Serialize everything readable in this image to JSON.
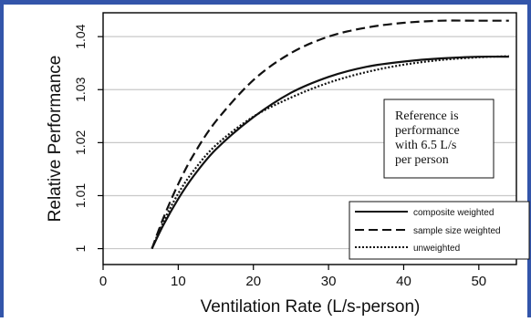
{
  "chart_data": {
    "type": "line",
    "xlabel": "Ventilation Rate (L/s-person)",
    "ylabel": "Relative Performance",
    "xlim": [
      0,
      55
    ],
    "ylim": [
      0.997,
      1.0445
    ],
    "x_ticks": [
      "0",
      "10",
      "20",
      "30",
      "40",
      "50"
    ],
    "y_ticks": [
      "1",
      "1.01",
      "1.02",
      "1.03",
      "1.04"
    ],
    "grid": "horizontal",
    "legend_position": "bottom-right",
    "annotation": [
      "Reference is",
      "performance",
      "with 6.5 L/s",
      "per person"
    ],
    "series": [
      {
        "name": "composite weighted",
        "line_style": "solid",
        "x": [
          6.5,
          8,
          10,
          12,
          15,
          20,
          25,
          30,
          35,
          40,
          45,
          50,
          54
        ],
        "y": [
          1.0,
          1.0044,
          1.0094,
          1.0136,
          1.0187,
          1.0248,
          1.0294,
          1.0324,
          1.0343,
          1.0353,
          1.0359,
          1.0362,
          1.0362
        ]
      },
      {
        "name": "sample size weighted",
        "line_style": "dashed",
        "x": [
          6.5,
          8,
          10,
          12,
          15,
          20,
          25,
          30,
          35,
          40,
          45,
          50,
          54
        ],
        "y": [
          1.0,
          1.0057,
          1.0122,
          1.0176,
          1.024,
          1.0318,
          1.0369,
          1.04,
          1.0417,
          1.0426,
          1.043,
          1.043,
          1.043
        ]
      },
      {
        "name": "unweighted",
        "line_style": "dotted",
        "x": [
          6.5,
          8,
          10,
          12,
          15,
          20,
          25,
          30,
          35,
          40,
          45,
          50,
          54
        ],
        "y": [
          1.0,
          1.005,
          1.0104,
          1.0146,
          1.0195,
          1.0249,
          1.0285,
          1.0313,
          1.0333,
          1.0347,
          1.0356,
          1.0361,
          1.0363
        ]
      }
    ]
  },
  "colors": {
    "frame_accent": "#3355aa",
    "line": "#111111",
    "grid": "#c8c8c8"
  }
}
